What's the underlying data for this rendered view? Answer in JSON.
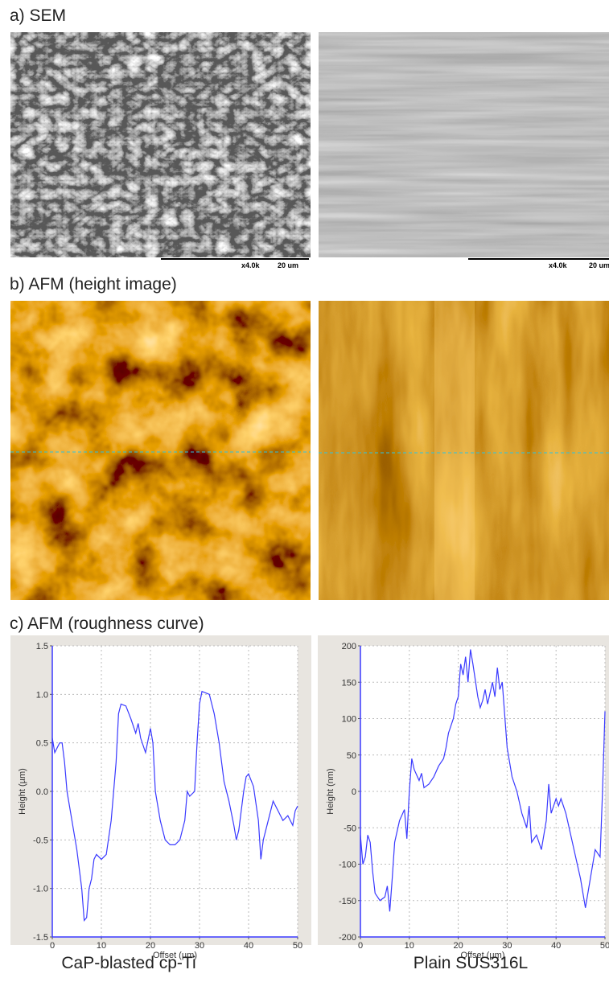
{
  "panels": {
    "a": {
      "label": "a) SEM",
      "scale_bars": [
        {
          "mag": "x4.0k",
          "length": "20 um"
        },
        {
          "mag": "x4.0k",
          "length": "20 um"
        }
      ]
    },
    "b": {
      "label": "b) AFM (height image)"
    },
    "c": {
      "label": "c) AFM (roughness curve)"
    }
  },
  "captions": [
    "CaP-blasted cp-Ti",
    "Plain SUS316L"
  ],
  "chart_data": [
    {
      "type": "line",
      "x_label": "Offset (µm)",
      "y_label": "Height (µm)",
      "color": "#3a3aff",
      "grid": true,
      "xlim": [
        0,
        50
      ],
      "xticks": [
        0,
        10,
        20,
        30,
        40,
        50
      ],
      "ylim": [
        -1.5,
        1.5
      ],
      "yticks": [
        -1.5,
        {
          "value": -1,
          "label": "-1.0"
        },
        -0.5,
        {
          "value": 0,
          "label": "0.0"
        },
        0.5,
        {
          "value": 1,
          "label": "1.0"
        },
        1.5
      ],
      "x": [
        0,
        0.5,
        1,
        1.5,
        2,
        2.5,
        3,
        4,
        5,
        6,
        6.5,
        7,
        7.5,
        8,
        8.5,
        9,
        10,
        11,
        12,
        13,
        13.5,
        14,
        15,
        16,
        17,
        17.5,
        18,
        19,
        20,
        20.5,
        21,
        22,
        23,
        24,
        25,
        26,
        27,
        27.5,
        28,
        29,
        29.5,
        30,
        30.5,
        31,
        32,
        33,
        34,
        35,
        36,
        37,
        37.5,
        38,
        39,
        39.5,
        40,
        41,
        42,
        42.5,
        43,
        44,
        45,
        46,
        47,
        48,
        49,
        49.5,
        50
      ],
      "values": [
        0.55,
        0.4,
        0.45,
        0.5,
        0.5,
        0.3,
        0.0,
        -0.3,
        -0.6,
        -1.0,
        -1.33,
        -1.3,
        -1.0,
        -0.9,
        -0.7,
        -0.65,
        -0.7,
        -0.65,
        -0.3,
        0.3,
        0.8,
        0.9,
        0.88,
        0.75,
        0.6,
        0.7,
        0.55,
        0.4,
        0.65,
        0.5,
        0.0,
        -0.3,
        -0.5,
        -0.55,
        -0.55,
        -0.5,
        -0.3,
        0.0,
        -0.05,
        0.0,
        0.5,
        0.9,
        1.03,
        1.02,
        1.0,
        0.8,
        0.5,
        0.1,
        -0.1,
        -0.35,
        -0.5,
        -0.4,
        0.0,
        0.15,
        0.18,
        0.05,
        -0.3,
        -0.7,
        -0.5,
        -0.3,
        -0.1,
        -0.2,
        -0.3,
        -0.25,
        -0.35,
        -0.2,
        -0.15
      ]
    },
    {
      "type": "line",
      "x_label": "Offset (µm)",
      "y_label": "Height (nm)",
      "color": "#3a3aff",
      "grid": true,
      "xlim": [
        0,
        50
      ],
      "xticks": [
        0,
        10,
        20,
        30,
        40,
        50
      ],
      "ylim": [
        -200,
        200
      ],
      "yticks": [
        -200,
        -150,
        -100,
        -50,
        0,
        50,
        100,
        150,
        200
      ],
      "x": [
        0,
        0.5,
        1,
        1.5,
        2,
        2.5,
        3,
        4,
        5,
        5.5,
        6,
        6.5,
        7,
        8,
        9,
        9.5,
        10,
        10.5,
        11,
        12,
        12.5,
        13,
        14,
        15,
        16,
        17,
        17.5,
        18,
        19,
        19.5,
        20,
        20.5,
        21,
        21.5,
        22,
        22.5,
        23,
        24,
        24.5,
        25,
        25.5,
        26,
        26.5,
        27,
        27.5,
        28,
        28.5,
        29,
        30,
        31,
        32,
        33,
        34,
        34.5,
        35,
        36,
        37,
        38,
        38.5,
        39,
        40,
        40.5,
        41,
        42,
        43,
        44,
        45,
        46,
        47,
        48,
        49,
        49.5,
        50
      ],
      "values": [
        -60,
        -100,
        -90,
        -60,
        -70,
        -110,
        -140,
        -150,
        -145,
        -130,
        -165,
        -120,
        -70,
        -40,
        -25,
        -65,
        0,
        45,
        30,
        15,
        25,
        5,
        10,
        20,
        35,
        45,
        60,
        80,
        100,
        120,
        130,
        175,
        160,
        185,
        150,
        195,
        175,
        130,
        115,
        125,
        140,
        120,
        135,
        150,
        130,
        170,
        140,
        150,
        60,
        20,
        0,
        -30,
        -50,
        -20,
        -70,
        -60,
        -80,
        -40,
        10,
        -30,
        -10,
        -20,
        -10,
        -30,
        -60,
        -90,
        -120,
        -160,
        -120,
        -80,
        -90,
        0,
        110
      ]
    }
  ]
}
